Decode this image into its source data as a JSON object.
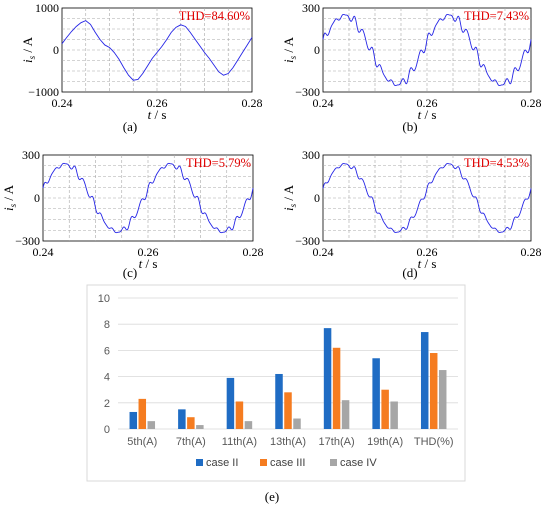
{
  "chart_data": [
    {
      "id": "a",
      "type": "line",
      "panel_label": "(a)",
      "annotation": "THD=84.60%",
      "xlabel": "t / s",
      "ylabel": "i_s / A",
      "xlim": [
        0.24,
        0.28
      ],
      "ylim": [
        -1000,
        1000
      ],
      "xticks": [
        "0.24",
        "0.26",
        "0.28"
      ],
      "yticks": [
        "1000",
        "0",
        "−1000"
      ],
      "color": "#2626e6",
      "grid": true,
      "series": [
        {
          "x": [
            0.24,
            0.241,
            0.242,
            0.243,
            0.244,
            0.245,
            0.246,
            0.247,
            0.248,
            0.249,
            0.25,
            0.251,
            0.252,
            0.253,
            0.254,
            0.255,
            0.256,
            0.257,
            0.258,
            0.259,
            0.26,
            0.261,
            0.262,
            0.263,
            0.264,
            0.265,
            0.266,
            0.267,
            0.268,
            0.269,
            0.27,
            0.271,
            0.272,
            0.273,
            0.274,
            0.275,
            0.276,
            0.277,
            0.278,
            0.279,
            0.28
          ],
          "y": [
            150,
            300,
            440,
            560,
            650,
            700,
            610,
            420,
            250,
            120,
            60,
            -60,
            -220,
            -420,
            -600,
            -720,
            -700,
            -560,
            -380,
            -200,
            -60,
            80,
            240,
            420,
            540,
            600,
            560,
            420,
            260,
            100,
            -60,
            -200,
            -360,
            -520,
            -600,
            -560,
            -420,
            -240,
            -60,
            120,
            300
          ]
        }
      ]
    },
    {
      "id": "b",
      "type": "line",
      "panel_label": "(b)",
      "annotation": "THD=7.43%",
      "xlabel": "t / s",
      "ylabel": "i_s / A",
      "xlim": [
        0.24,
        0.28
      ],
      "ylim": [
        -300,
        300
      ],
      "xticks": [
        "0.24",
        "0.26",
        "0.28"
      ],
      "yticks": [
        "300",
        "0",
        "−300"
      ],
      "color": "#2626e6",
      "grid": true,
      "series": [
        {
          "amplitude": 245,
          "period": 0.02,
          "ripple": 22
        }
      ]
    },
    {
      "id": "c",
      "type": "line",
      "panel_label": "(c)",
      "annotation": "THD=5.79%",
      "xlabel": "t / s",
      "ylabel": "i_s / A",
      "xlim": [
        0.24,
        0.28
      ],
      "ylim": [
        -300,
        300
      ],
      "xticks": [
        "0.24",
        "0.26",
        "0.28"
      ],
      "yticks": [
        "300",
        "0",
        "−300"
      ],
      "color": "#2626e6",
      "grid": true,
      "series": [
        {
          "amplitude": 235,
          "period": 0.02,
          "ripple": 16
        }
      ]
    },
    {
      "id": "d",
      "type": "line",
      "panel_label": "(d)",
      "annotation": "THD=4.53%",
      "xlabel": "t / s",
      "ylabel": "i_s / A",
      "xlim": [
        0.24,
        0.28
      ],
      "ylim": [
        -300,
        300
      ],
      "xticks": [
        "0.24",
        "0.26",
        "0.28"
      ],
      "yticks": [
        "300",
        "0",
        "−300"
      ],
      "color": "#2626e6",
      "grid": true,
      "series": [
        {
          "amplitude": 235,
          "period": 0.02,
          "ripple": 13
        }
      ]
    },
    {
      "id": "e",
      "type": "bar",
      "panel_label": "(e)",
      "categories": [
        "5th(A)",
        "7th(A)",
        "11th(A)",
        "13th(A)",
        "17th(A)",
        "19th(A)",
        "THD(%)"
      ],
      "ylim": [
        0,
        10
      ],
      "yticks": [
        "0",
        "2",
        "4",
        "6",
        "8",
        "10"
      ],
      "grid": true,
      "legend_position": "bottom",
      "series": [
        {
          "name": "case II",
          "color": "#1f6cc4",
          "values": [
            1.3,
            1.5,
            3.9,
            4.2,
            7.7,
            5.4,
            7.4
          ]
        },
        {
          "name": "case III",
          "color": "#f57c20",
          "values": [
            2.3,
            0.9,
            2.1,
            2.8,
            6.2,
            3.0,
            5.8
          ]
        },
        {
          "name": "case IV",
          "color": "#a6a6a6",
          "values": [
            0.6,
            0.3,
            0.6,
            0.8,
            2.2,
            2.1,
            4.5
          ]
        }
      ]
    }
  ]
}
